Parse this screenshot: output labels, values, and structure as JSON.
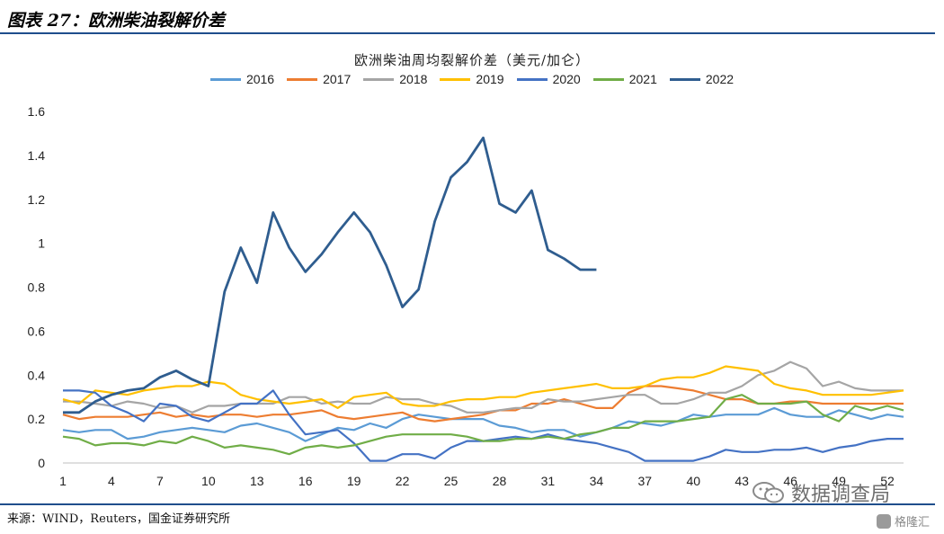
{
  "figure": {
    "title": "图表 27：欧洲柴油裂解价差",
    "source": "来源：WIND，Reuters，国金证券研究所",
    "watermark_text": "数据调查局",
    "logo_text": "格隆汇"
  },
  "chart_data": {
    "type": "line",
    "title": "欧洲柴油周均裂解价差（美元/加仑）",
    "xlabel": "",
    "ylabel": "",
    "xlim": [
      1,
      53
    ],
    "ylim": [
      0,
      1.6
    ],
    "yticks": [
      "0",
      "0.2",
      "0.4",
      "0.6",
      "0.8",
      "1",
      "1.2",
      "1.4",
      "1.6"
    ],
    "xticks": [
      "1",
      "4",
      "7",
      "10",
      "13",
      "16",
      "19",
      "22",
      "25",
      "28",
      "31",
      "34",
      "37",
      "40",
      "43",
      "46",
      "49",
      "52"
    ],
    "legend_position": "top",
    "grid": false,
    "series": [
      {
        "name": "2016",
        "color": "#5b9bd5",
        "values": [
          0.15,
          0.14,
          0.15,
          0.15,
          0.11,
          0.12,
          0.14,
          0.15,
          0.16,
          0.15,
          0.14,
          0.17,
          0.18,
          0.16,
          0.14,
          0.1,
          0.13,
          0.16,
          0.15,
          0.18,
          0.16,
          0.2,
          0.22,
          0.21,
          0.2,
          0.2,
          0.2,
          0.17,
          0.16,
          0.14,
          0.15,
          0.15,
          0.12,
          0.14,
          0.16,
          0.19,
          0.18,
          0.17,
          0.19,
          0.22,
          0.21,
          0.22,
          0.22,
          0.22,
          0.25,
          0.22,
          0.21,
          0.21,
          0.24,
          0.22,
          0.2,
          0.22,
          0.21
        ]
      },
      {
        "name": "2017",
        "color": "#ed7d31",
        "values": [
          0.22,
          0.2,
          0.21,
          0.21,
          0.21,
          0.22,
          0.23,
          0.21,
          0.22,
          0.21,
          0.22,
          0.22,
          0.21,
          0.22,
          0.22,
          0.23,
          0.24,
          0.21,
          0.2,
          0.21,
          0.22,
          0.23,
          0.2,
          0.19,
          0.2,
          0.21,
          0.22,
          0.24,
          0.24,
          0.27,
          0.27,
          0.29,
          0.27,
          0.25,
          0.25,
          0.32,
          0.35,
          0.35,
          0.34,
          0.33,
          0.31,
          0.29,
          0.29,
          0.27,
          0.27,
          0.28,
          0.28,
          0.27,
          0.27,
          0.27,
          0.27,
          0.27,
          0.27
        ]
      },
      {
        "name": "2018",
        "color": "#a5a5a5",
        "values": [
          0.28,
          0.28,
          0.27,
          0.26,
          0.28,
          0.27,
          0.25,
          0.26,
          0.23,
          0.26,
          0.26,
          0.27,
          0.27,
          0.27,
          0.3,
          0.3,
          0.27,
          0.28,
          0.27,
          0.27,
          0.3,
          0.29,
          0.29,
          0.27,
          0.26,
          0.23,
          0.23,
          0.24,
          0.25,
          0.25,
          0.29,
          0.28,
          0.28,
          0.29,
          0.3,
          0.31,
          0.31,
          0.27,
          0.27,
          0.29,
          0.32,
          0.32,
          0.35,
          0.4,
          0.42,
          0.46,
          0.43,
          0.35,
          0.37,
          0.34,
          0.33,
          0.33,
          0.33
        ]
      },
      {
        "name": "2019",
        "color": "#ffc000",
        "values": [
          0.29,
          0.27,
          0.33,
          0.32,
          0.31,
          0.33,
          0.34,
          0.35,
          0.35,
          0.37,
          0.36,
          0.31,
          0.29,
          0.28,
          0.27,
          0.28,
          0.29,
          0.25,
          0.3,
          0.31,
          0.32,
          0.27,
          0.26,
          0.26,
          0.28,
          0.29,
          0.29,
          0.3,
          0.3,
          0.32,
          0.33,
          0.34,
          0.35,
          0.36,
          0.34,
          0.34,
          0.35,
          0.38,
          0.39,
          0.39,
          0.41,
          0.44,
          0.43,
          0.42,
          0.36,
          0.34,
          0.33,
          0.31,
          0.31,
          0.31,
          0.31,
          0.32,
          0.33
        ]
      },
      {
        "name": "2020",
        "color": "#4472c4",
        "values": [
          0.33,
          0.33,
          0.32,
          0.26,
          0.23,
          0.19,
          0.27,
          0.26,
          0.21,
          0.19,
          0.23,
          0.27,
          0.27,
          0.33,
          0.22,
          0.13,
          0.14,
          0.15,
          0.09,
          0.01,
          0.01,
          0.04,
          0.04,
          0.02,
          0.07,
          0.1,
          0.1,
          0.11,
          0.12,
          0.11,
          0.13,
          0.11,
          0.1,
          0.09,
          0.07,
          0.05,
          0.01,
          0.01,
          0.01,
          0.01,
          0.03,
          0.06,
          0.05,
          0.05,
          0.06,
          0.06,
          0.07,
          0.05,
          0.07,
          0.08,
          0.1,
          0.11,
          0.11
        ]
      },
      {
        "name": "2021",
        "color": "#70ad47",
        "values": [
          0.12,
          0.11,
          0.08,
          0.09,
          0.09,
          0.08,
          0.1,
          0.09,
          0.12,
          0.1,
          0.07,
          0.08,
          0.07,
          0.06,
          0.04,
          0.07,
          0.08,
          0.07,
          0.08,
          0.1,
          0.12,
          0.13,
          0.13,
          0.13,
          0.13,
          0.12,
          0.1,
          0.1,
          0.11,
          0.11,
          0.12,
          0.11,
          0.13,
          0.14,
          0.16,
          0.16,
          0.19,
          0.19,
          0.19,
          0.2,
          0.21,
          0.29,
          0.31,
          0.27,
          0.27,
          0.27,
          0.28,
          0.22,
          0.19,
          0.26,
          0.24,
          0.26,
          0.24
        ]
      },
      {
        "name": "2022",
        "color": "#2f5d8f",
        "values": [
          0.23,
          0.23,
          0.28,
          0.31,
          0.33,
          0.34,
          0.39,
          0.42,
          0.38,
          0.35,
          0.78,
          0.98,
          0.82,
          1.14,
          0.98,
          0.87,
          0.95,
          1.05,
          1.14,
          1.05,
          0.9,
          0.71,
          0.79,
          1.1,
          1.3,
          1.37,
          1.48,
          1.18,
          1.14,
          1.24,
          0.97,
          0.93,
          0.88,
          0.88
        ]
      }
    ]
  }
}
